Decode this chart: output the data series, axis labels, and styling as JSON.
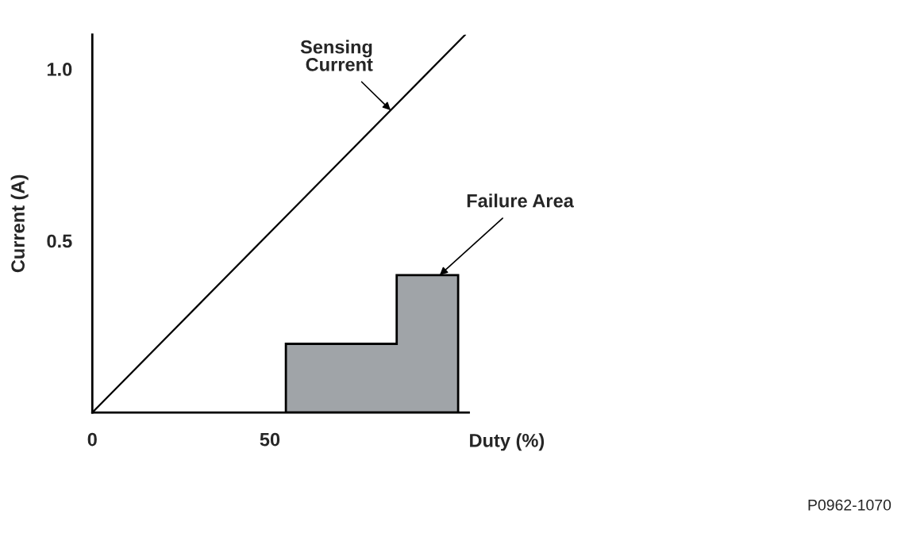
{
  "chart_data": {
    "type": "line",
    "xlabel": "Duty (%)",
    "ylabel": "Current (A)",
    "xlim": [
      0,
      106
    ],
    "ylim": [
      0,
      1.1
    ],
    "xticks": [
      0,
      50
    ],
    "yticks": [
      {
        "value": 0.5,
        "label": "0.5"
      },
      {
        "value": 1.0,
        "label": "1.0"
      }
    ],
    "series": [
      {
        "name": "Sensing Current",
        "color": "#000000",
        "x": [
          0,
          105
        ],
        "values": [
          0,
          1.1
        ]
      },
      {
        "name": "Failure Area",
        "type": "area",
        "color": "#a0a4a8",
        "x": [
          54.5,
          54.5,
          85.7,
          85.7,
          103,
          103
        ],
        "values": [
          0,
          0.2,
          0.2,
          0.4,
          0.4,
          0
        ]
      }
    ],
    "annotations": [
      "P0962-1070"
    ],
    "grid": false,
    "legend": false
  }
}
